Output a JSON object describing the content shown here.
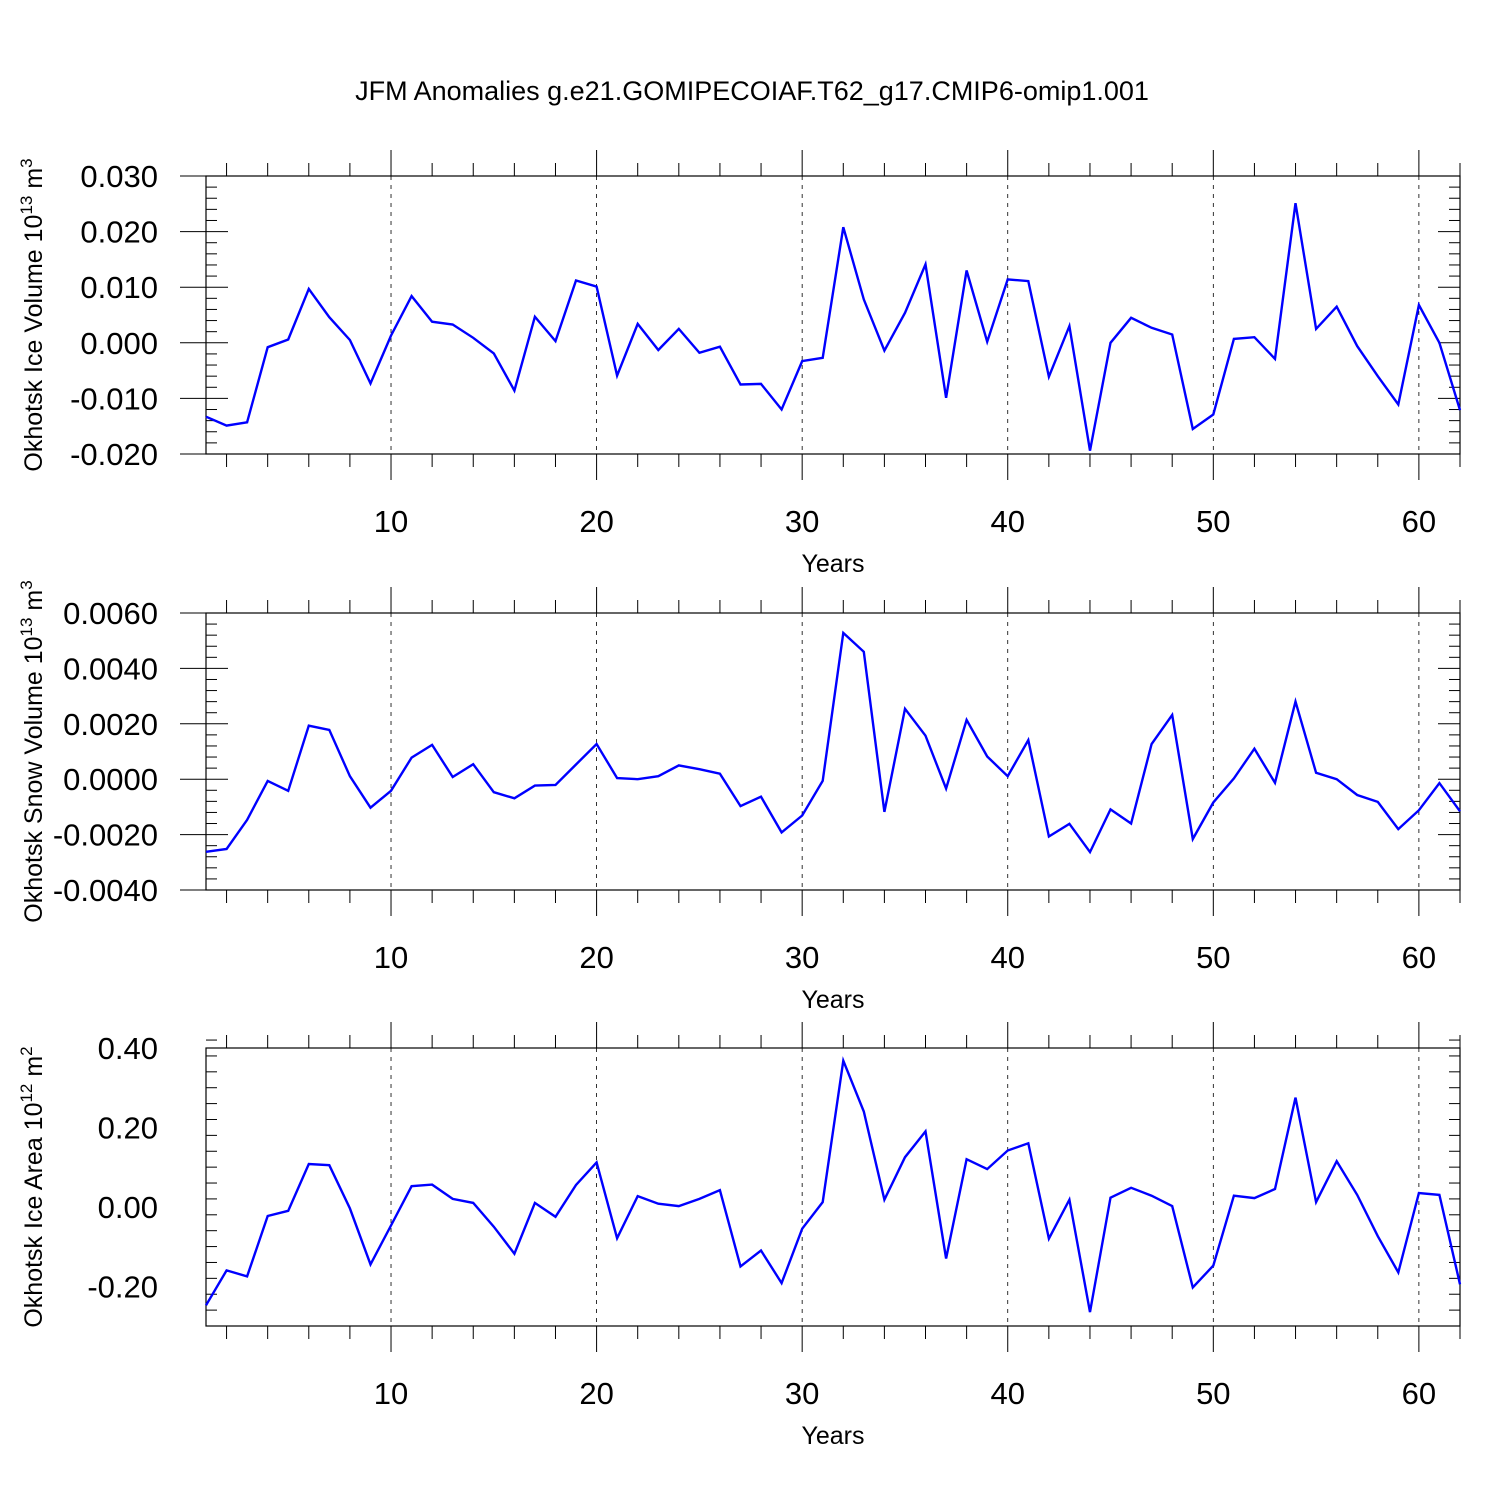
{
  "figure_title": "JFM Anomalies g.e21.GOMIPECOIAF.T62_g17.CMIP6-omip1.001",
  "chart_data": [
    {
      "type": "line",
      "title": "",
      "xlabel": "Years",
      "ylabel_parts": {
        "text": "Okhotsk Ice Volume 10",
        "exponent": "13",
        "unit": " m",
        "unit_exponent": "3"
      },
      "xlim": [
        1,
        62
      ],
      "ylim": [
        -0.02,
        0.03
      ],
      "x_ticks": [
        10,
        20,
        30,
        40,
        50,
        60
      ],
      "x_tick_labels": [
        "10",
        "20",
        "30",
        "40",
        "50",
        "60"
      ],
      "y_ticks": [
        -0.02,
        -0.01,
        0.0,
        0.01,
        0.02,
        0.03
      ],
      "y_tick_labels": [
        "-0.020",
        "-0.010",
        "0.000",
        "0.010",
        "0.020",
        "0.030"
      ],
      "grid": "vertical-dashed",
      "line_color": "#0000ff",
      "series": [
        {
          "x": [
            1,
            2,
            3,
            4,
            5,
            6,
            7,
            8,
            9,
            10,
            11,
            12,
            13,
            14,
            15,
            16,
            17,
            18,
            19,
            20,
            21,
            22,
            23,
            24,
            25,
            26,
            27,
            28,
            29,
            30,
            31,
            32,
            33,
            34,
            35,
            36,
            37,
            38,
            39,
            40,
            41,
            42,
            43,
            44,
            45,
            46,
            47,
            48,
            49,
            50,
            51,
            52,
            53,
            54,
            55,
            56,
            57,
            58,
            59,
            60,
            61,
            62
          ],
          "values": [
            -0.0133,
            -0.0149,
            -0.0143,
            -0.0008,
            0.0006,
            0.0097,
            0.0046,
            0.0005,
            -0.0073,
            0.0013,
            0.0084,
            0.0038,
            0.0033,
            0.0009,
            -0.0019,
            -0.0086,
            0.0047,
            0.0003,
            0.0112,
            0.0101,
            -0.0059,
            0.0034,
            -0.0013,
            0.0025,
            -0.0018,
            -0.0007,
            -0.0075,
            -0.0074,
            -0.012,
            -0.0033,
            -0.0027,
            0.0208,
            0.0078,
            -0.0014,
            0.0054,
            0.0141,
            -0.0099,
            0.013,
            0.0002,
            0.0114,
            0.0111,
            -0.0061,
            0.003,
            -0.0194,
            0.0,
            0.0045,
            0.0027,
            0.0015,
            -0.0155,
            -0.0129,
            0.0007,
            0.001,
            -0.0029,
            0.0251,
            0.0025,
            0.0065,
            -0.0006,
            -0.006,
            -0.0111,
            0.0068,
            0.0,
            -0.0121
          ]
        }
      ]
    },
    {
      "type": "line",
      "title": "",
      "xlabel": "Years",
      "ylabel_parts": {
        "text": "Okhotsk Snow Volume 10",
        "exponent": "13",
        "unit": " m",
        "unit_exponent": "3"
      },
      "xlim": [
        1,
        62
      ],
      "ylim": [
        -0.004,
        0.006
      ],
      "x_ticks": [
        10,
        20,
        30,
        40,
        50,
        60
      ],
      "x_tick_labels": [
        "10",
        "20",
        "30",
        "40",
        "50",
        "60"
      ],
      "y_ticks": [
        -0.004,
        -0.002,
        0.0,
        0.002,
        0.004,
        0.006
      ],
      "y_tick_labels": [
        "-0.0040",
        "-0.0020",
        "0.0000",
        "0.0020",
        "0.0040",
        "0.0060"
      ],
      "grid": "vertical-dashed",
      "line_color": "#0000ff",
      "series": [
        {
          "x": [
            1,
            2,
            3,
            4,
            5,
            6,
            7,
            8,
            9,
            10,
            11,
            12,
            13,
            14,
            15,
            16,
            17,
            18,
            19,
            20,
            21,
            22,
            23,
            24,
            25,
            26,
            27,
            28,
            29,
            30,
            31,
            32,
            33,
            34,
            35,
            36,
            37,
            38,
            39,
            40,
            41,
            42,
            43,
            44,
            45,
            46,
            47,
            48,
            49,
            50,
            51,
            52,
            53,
            54,
            55,
            56,
            57,
            58,
            59,
            60,
            61,
            62
          ],
          "values": [
            -0.00262,
            -0.00252,
            -0.00147,
            -6e-05,
            -0.00042,
            0.00193,
            0.00178,
            0.00011,
            -0.00103,
            -0.00042,
            0.00078,
            0.00124,
            8e-05,
            0.00054,
            -0.00047,
            -0.00069,
            -0.00023,
            -0.00021,
            0.00053,
            0.00127,
            4e-05,
            0.0,
            0.00011,
            0.0005,
            0.00036,
            0.0002,
            -0.00097,
            -0.00063,
            -0.00192,
            -0.00131,
            -6e-05,
            0.00528,
            0.0046,
            -0.00118,
            0.00254,
            0.00157,
            -0.00034,
            0.00214,
            0.00082,
            0.00011,
            0.00141,
            -0.00207,
            -0.00161,
            -0.00263,
            -0.00109,
            -0.0016,
            0.00127,
            0.00232,
            -0.00216,
            -0.00084,
            3e-05,
            0.0011,
            -0.00013,
            0.0028,
            0.00023,
            0.0,
            -0.00057,
            -0.00082,
            -0.0018,
            -0.00112,
            -0.00014,
            -0.00116
          ]
        }
      ]
    },
    {
      "type": "line",
      "title": "",
      "xlabel": "Years",
      "ylabel_parts": {
        "text": "Okhotsk Ice Area 10",
        "exponent": "12",
        "unit": " m",
        "unit_exponent": "2"
      },
      "xlim": [
        1,
        62
      ],
      "ylim": [
        -0.3,
        0.4
      ],
      "x_ticks": [
        10,
        20,
        30,
        40,
        50,
        60
      ],
      "x_tick_labels": [
        "10",
        "20",
        "30",
        "40",
        "50",
        "60"
      ],
      "y_ticks": [
        -0.2,
        0.0,
        0.2,
        0.4
      ],
      "y_tick_labels": [
        "-0.20",
        "0.00",
        "0.20",
        "0.40"
      ],
      "grid": "vertical-dashed",
      "line_color": "#0000ff",
      "series": [
        {
          "x": [
            1,
            2,
            3,
            4,
            5,
            6,
            7,
            8,
            9,
            10,
            11,
            12,
            13,
            14,
            15,
            16,
            17,
            18,
            19,
            20,
            21,
            22,
            23,
            24,
            25,
            26,
            27,
            28,
            29,
            30,
            31,
            32,
            33,
            34,
            35,
            36,
            37,
            38,
            39,
            40,
            41,
            42,
            43,
            44,
            45,
            46,
            47,
            48,
            49,
            50,
            51,
            52,
            53,
            54,
            55,
            56,
            57,
            58,
            59,
            60,
            61,
            62
          ],
          "values": [
            -0.248,
            -0.16,
            -0.175,
            -0.023,
            -0.01,
            0.108,
            0.105,
            -0.004,
            -0.145,
            -0.047,
            0.052,
            0.056,
            0.02,
            0.01,
            -0.05,
            -0.118,
            0.01,
            -0.025,
            0.055,
            0.112,
            -0.079,
            0.027,
            0.008,
            0.002,
            0.02,
            0.042,
            -0.15,
            -0.11,
            -0.192,
            -0.055,
            0.012,
            0.368,
            0.24,
            0.018,
            0.125,
            0.19,
            -0.13,
            0.12,
            0.095,
            0.142,
            0.16,
            -0.08,
            0.018,
            -0.265,
            0.023,
            0.048,
            0.028,
            0.002,
            -0.203,
            -0.148,
            0.028,
            0.022,
            0.045,
            0.275,
            0.012,
            0.115,
            0.03,
            -0.074,
            -0.165,
            0.035,
            0.03,
            -0.195
          ]
        }
      ]
    }
  ]
}
